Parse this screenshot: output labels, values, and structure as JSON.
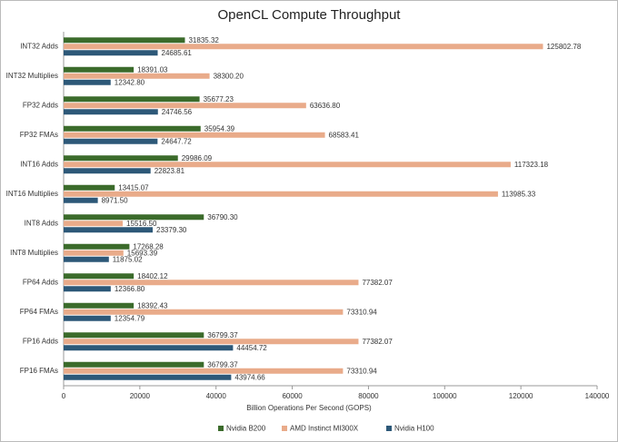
{
  "chart_data": {
    "type": "hbar",
    "title": "OpenCL Compute Throughput",
    "x_label": "Billion Operations Per Second (GOPS)",
    "categories": [
      "INT32 Adds",
      "INT32 Multiplies",
      "FP32 Adds",
      "FP32 FMAs",
      "INT16 Adds",
      "INT16 Multiplies",
      "INT8 Adds",
      "INT8 Multiplies",
      "FP64 Adds",
      "FP64 FMAs",
      "FP16 Adds",
      "FP16 FMAs"
    ],
    "series": [
      {
        "name": "Nvidia B200",
        "color": "#3b6b2b",
        "values": [
          31835.32,
          18391.03,
          35677.23,
          35954.39,
          29986.09,
          13415.07,
          36790.3,
          17268.28,
          18402.12,
          18392.43,
          36799.37,
          36799.37
        ],
        "value_labels": [
          "31835.32",
          "18391.03",
          "35677.23",
          "35954.39",
          "29986.09",
          "13415.07",
          "36790.30",
          "17268.28",
          "18402.12",
          "18392.43",
          "36799.37",
          "36799.37"
        ]
      },
      {
        "name": "AMD Instinct MI300X",
        "color": "#e9ab8a",
        "values": [
          125802.78,
          38300.2,
          63636.8,
          68583.41,
          117323.18,
          113985.33,
          15516.5,
          15693.39,
          77382.07,
          73310.94,
          77382.07,
          73310.94
        ],
        "value_labels": [
          "125802.78",
          "38300.20",
          "63636.80",
          "68583.41",
          "117323.18",
          "113985.33",
          "15516.50",
          "15693.39",
          "77382.07",
          "73310.94",
          "77382.07",
          "73310.94"
        ]
      },
      {
        "name": "Nvidia H100",
        "color": "#2d5878",
        "values": [
          24685.61,
          12342.8,
          24746.56,
          24647.72,
          22823.81,
          8971.5,
          23379.3,
          11875.02,
          12366.8,
          12354.79,
          44454.72,
          43974.66
        ],
        "value_labels": [
          "24685.61",
          "12342.80",
          "24746.56",
          "24647.72",
          "22823.81",
          "8971.50",
          "23379.30",
          "11875.02",
          "12366.80",
          "12354.79",
          "44454.72",
          "43974.66"
        ]
      }
    ],
    "xlim": [
      0,
      140000
    ],
    "xticks": [
      0,
      20000,
      40000,
      60000,
      80000,
      100000,
      120000,
      140000
    ],
    "legend": "bottom"
  }
}
